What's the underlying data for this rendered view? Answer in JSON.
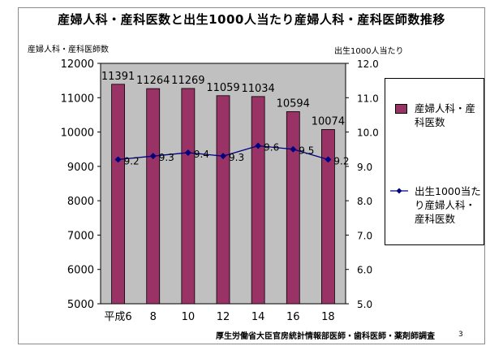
{
  "title": "産婦人科・産科医数と出生1000人当たり産婦人科・産科医師数推移",
  "source": "厚生労働省大臣官房統計情報部医師・歯科医師・薬剤師調査",
  "page_number": "3",
  "colors": {
    "bar": "#993366",
    "line": "#000080",
    "plot_bg": "#c0c0c0"
  },
  "chart_data": {
    "type": "bar",
    "categories": [
      "平成6",
      "8",
      "10",
      "12",
      "14",
      "16",
      "18"
    ],
    "series": [
      {
        "name": "産婦人科・産科医数",
        "type": "bar",
        "axis": "left",
        "values": [
          11391,
          11264,
          11269,
          11059,
          11034,
          10594,
          10074
        ]
      },
      {
        "name": "出生1000当たり産婦人科・産科医数",
        "type": "line",
        "axis": "right",
        "values": [
          9.2,
          9.3,
          9.4,
          9.3,
          9.6,
          9.5,
          9.2
        ]
      }
    ],
    "ylabel": "産婦人科・産科医師数",
    "y2label": "出生1000人当たり",
    "ylim": [
      5000,
      12000
    ],
    "y2lim": [
      5.0,
      12.0
    ],
    "yticks": [
      "5000",
      "6000",
      "7000",
      "8000",
      "9000",
      "10000",
      "11000",
      "12000"
    ],
    "y2ticks": [
      "5.0",
      "6.0",
      "7.0",
      "8.0",
      "9.0",
      "10.0",
      "11.0",
      "12.0"
    ],
    "bar_labels": [
      "11391",
      "11264",
      "11269",
      "11059",
      "11034",
      "10594",
      "10074"
    ],
    "line_labels": [
      "9.2",
      "9.3",
      "9.4",
      "9.3",
      "9.6",
      "9.5",
      "9.2"
    ],
    "grid": false,
    "legend_position": "right"
  },
  "legend": {
    "bar_label": "産婦人科・産科医数",
    "line_label": "出生1000当たり産婦人科・産科医数"
  }
}
